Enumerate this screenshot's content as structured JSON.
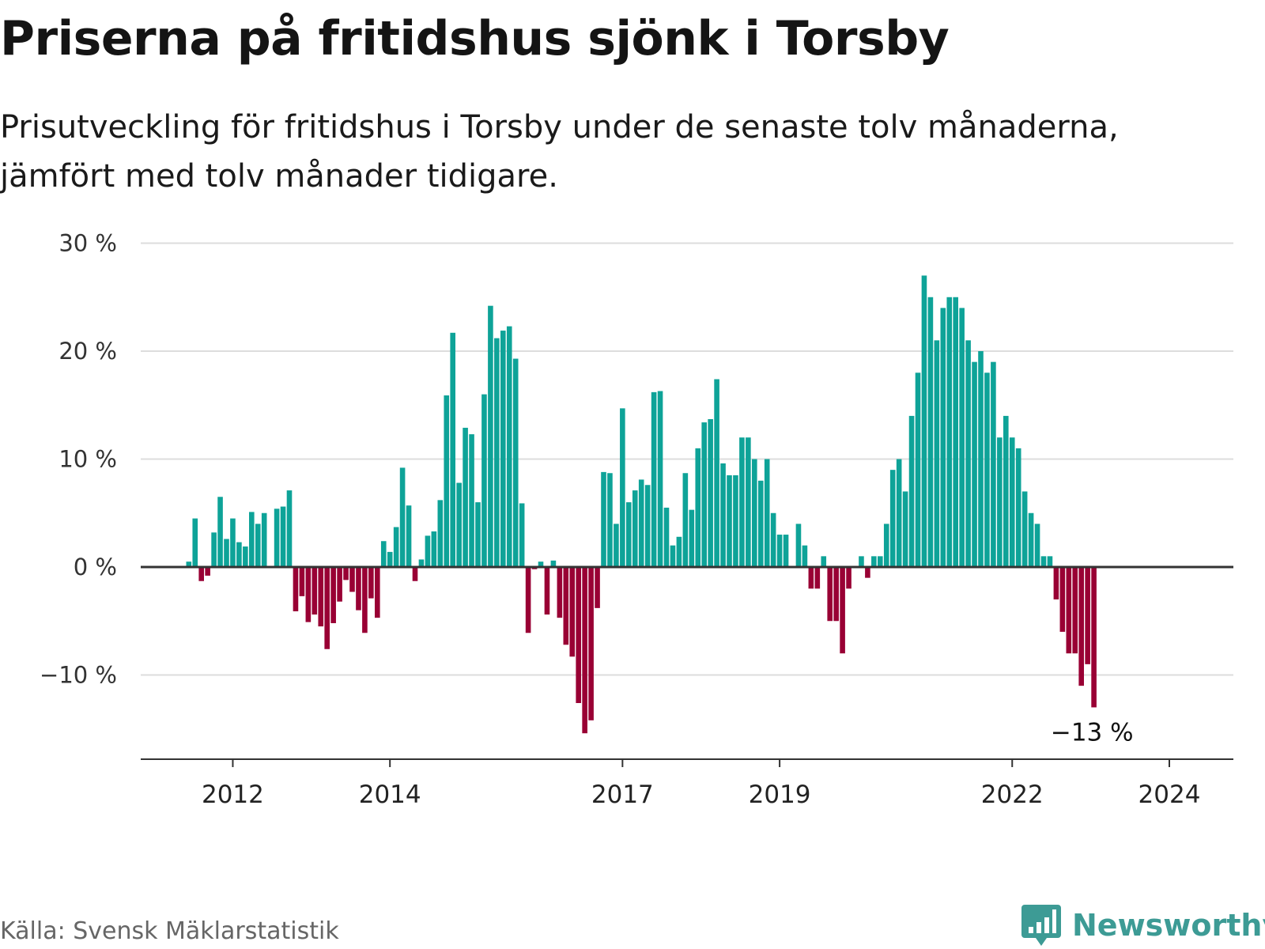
{
  "title": "Priserna på fritidshus sjönk i Torsby",
  "subtitle": "Prisutveckling för fritidshus i Torsby under de senaste tolv månaderna, jämfört med tolv månader tidigare.",
  "source": "Källa: Svensk Mäklarstatistik",
  "brand": {
    "name": "Newsworthy",
    "icon": "newsworthy-logo-icon"
  },
  "colors": {
    "positive": "#0ea398",
    "negative": "#990034",
    "grid": "#dddddd",
    "axis": "#333333",
    "brand": "#3d9b95"
  },
  "chart_data": {
    "type": "bar",
    "title": "Priserna på fritidshus sjönk i Torsby",
    "ylabel": "",
    "xlabel": "",
    "ylim": [
      -17.5,
      30
    ],
    "yticks": [
      30,
      20,
      10,
      0,
      -10
    ],
    "ytick_labels": [
      "30 %",
      "20 %",
      "10 %",
      "0 %",
      "−10 %"
    ],
    "xtick_labels": [
      {
        "label": "2012",
        "index": 7
      },
      {
        "label": "2014",
        "index": 32
      },
      {
        "label": "2017",
        "index": 69
      },
      {
        "label": "2019",
        "index": 94
      },
      {
        "label": "2022",
        "index": 131
      },
      {
        "label": "2024",
        "index": 156
      }
    ],
    "end_label": "−13 %",
    "values": [
      0.5,
      4.5,
      -1.3,
      -0.8,
      3.2,
      6.5,
      2.6,
      4.5,
      2.3,
      1.9,
      5.1,
      4.0,
      5.0,
      0,
      5.4,
      5.6,
      7.1,
      -4.1,
      -2.7,
      -5.1,
      -4.4,
      -5.5,
      -7.6,
      -5.2,
      -3.2,
      -1.2,
      -2.3,
      -4.0,
      -6.1,
      -2.9,
      -4.7,
      2.4,
      1.4,
      3.7,
      9.2,
      5.7,
      -1.3,
      0.7,
      2.9,
      3.3,
      6.2,
      15.9,
      21.7,
      7.8,
      12.9,
      12.3,
      6.0,
      16.0,
      24.2,
      21.2,
      21.9,
      22.3,
      19.3,
      5.9,
      -6.1,
      -0.2,
      0.5,
      -4.4,
      0.6,
      -4.7,
      -7.2,
      -8.3,
      -12.6,
      -15.4,
      -14.2,
      -3.8,
      8.8,
      8.7,
      4.0,
      14.7,
      6.0,
      7.1,
      8.1,
      7.6,
      16.2,
      16.3,
      5.5,
      2.0,
      2.8,
      8.7,
      5.3,
      11.0,
      13.4,
      13.7,
      17.4,
      9.6,
      8.5,
      8.5,
      12.0,
      12.0,
      10.0,
      8.0,
      10.0,
      5.0,
      3.0,
      3.0,
      0,
      4.0,
      2.0,
      -2.0,
      -2.0,
      1.0,
      -5.0,
      -5.0,
      -8.0,
      -2.0,
      0,
      1.0,
      -1.0,
      1.0,
      1.0,
      4.0,
      9.0,
      10.0,
      7.0,
      14.0,
      18.0,
      27.0,
      25.0,
      21.0,
      24.0,
      25.0,
      25.0,
      24.0,
      21.0,
      19.0,
      20.0,
      18.0,
      19.0,
      12.0,
      14.0,
      12.0,
      11.0,
      7.0,
      5.0,
      4.0,
      1.0,
      1.0,
      -3.0,
      -6.0,
      -8.0,
      -8.0,
      -11.0,
      -9.0,
      -13.0
    ]
  }
}
